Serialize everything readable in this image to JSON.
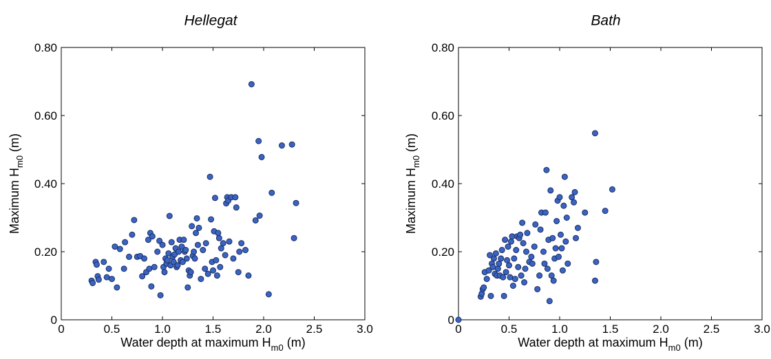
{
  "chart_data": [
    {
      "type": "scatter",
      "title": "Hellegat",
      "xlabel": {
        "main": "Water depth at maximum H",
        "sub": "m0",
        "unit": " (m)"
      },
      "ylabel": {
        "main": "Maximum H",
        "sub": "m0",
        "unit": " (m)"
      },
      "xlim": [
        0,
        3.0
      ],
      "ylim": [
        0,
        0.8
      ],
      "x_ticks": [
        "0",
        "0.5",
        "1.0",
        "1.5",
        "2.0",
        "2.5",
        "3.0"
      ],
      "y_ticks": [
        "0",
        "0.20",
        "0.40",
        "0.60",
        "0.80"
      ],
      "grid": false,
      "series": [
        {
          "color": "#3a64c4",
          "points": [
            [
              0.3,
              0.115
            ],
            [
              0.31,
              0.108
            ],
            [
              0.34,
              0.17
            ],
            [
              0.35,
              0.162
            ],
            [
              0.36,
              0.128
            ],
            [
              0.37,
              0.118
            ],
            [
              0.42,
              0.17
            ],
            [
              0.45,
              0.125
            ],
            [
              0.47,
              0.15
            ],
            [
              0.5,
              0.12
            ],
            [
              0.53,
              0.215
            ],
            [
              0.55,
              0.095
            ],
            [
              0.58,
              0.208
            ],
            [
              0.62,
              0.15
            ],
            [
              0.63,
              0.228
            ],
            [
              0.67,
              0.185
            ],
            [
              0.7,
              0.25
            ],
            [
              0.72,
              0.293
            ],
            [
              0.75,
              0.185
            ],
            [
              0.78,
              0.187
            ],
            [
              0.8,
              0.128
            ],
            [
              0.82,
              0.18
            ],
            [
              0.84,
              0.14
            ],
            [
              0.86,
              0.235
            ],
            [
              0.87,
              0.15
            ],
            [
              0.88,
              0.255
            ],
            [
              0.89,
              0.098
            ],
            [
              0.9,
              0.245
            ],
            [
              0.92,
              0.155
            ],
            [
              0.95,
              0.2
            ],
            [
              0.97,
              0.232
            ],
            [
              0.98,
              0.072
            ],
            [
              1.0,
              0.22
            ],
            [
              1.01,
              0.155
            ],
            [
              1.02,
              0.14
            ],
            [
              1.03,
              0.18
            ],
            [
              1.04,
              0.165
            ],
            [
              1.05,
              0.175
            ],
            [
              1.06,
              0.195
            ],
            [
              1.07,
              0.305
            ],
            [
              1.08,
              0.16
            ],
            [
              1.09,
              0.228
            ],
            [
              1.1,
              0.185
            ],
            [
              1.11,
              0.17
            ],
            [
              1.12,
              0.192
            ],
            [
              1.13,
              0.21
            ],
            [
              1.14,
              0.155
            ],
            [
              1.15,
              0.16
            ],
            [
              1.16,
              0.2
            ],
            [
              1.17,
              0.235
            ],
            [
              1.18,
              0.175
            ],
            [
              1.19,
              0.215
            ],
            [
              1.2,
              0.17
            ],
            [
              1.21,
              0.235
            ],
            [
              1.22,
              0.2
            ],
            [
              1.23,
              0.205
            ],
            [
              1.24,
              0.18
            ],
            [
              1.25,
              0.095
            ],
            [
              1.26,
              0.145
            ],
            [
              1.27,
              0.13
            ],
            [
              1.28,
              0.14
            ],
            [
              1.29,
              0.275
            ],
            [
              1.3,
              0.188
            ],
            [
              1.31,
              0.2
            ],
            [
              1.32,
              0.18
            ],
            [
              1.33,
              0.255
            ],
            [
              1.34,
              0.298
            ],
            [
              1.35,
              0.22
            ],
            [
              1.36,
              0.27
            ],
            [
              1.38,
              0.12
            ],
            [
              1.4,
              0.205
            ],
            [
              1.42,
              0.15
            ],
            [
              1.43,
              0.225
            ],
            [
              1.45,
              0.135
            ],
            [
              1.47,
              0.42
            ],
            [
              1.48,
              0.295
            ],
            [
              1.49,
              0.17
            ],
            [
              1.5,
              0.145
            ],
            [
              1.51,
              0.26
            ],
            [
              1.52,
              0.358
            ],
            [
              1.53,
              0.175
            ],
            [
              1.54,
              0.13
            ],
            [
              1.55,
              0.255
            ],
            [
              1.56,
              0.24
            ],
            [
              1.57,
              0.155
            ],
            [
              1.58,
              0.21
            ],
            [
              1.6,
              0.225
            ],
            [
              1.62,
              0.19
            ],
            [
              1.63,
              0.342
            ],
            [
              1.64,
              0.36
            ],
            [
              1.65,
              0.35
            ],
            [
              1.66,
              0.23
            ],
            [
              1.68,
              0.36
            ],
            [
              1.7,
              0.18
            ],
            [
              1.72,
              0.36
            ],
            [
              1.73,
              0.33
            ],
            [
              1.75,
              0.14
            ],
            [
              1.76,
              0.2
            ],
            [
              1.78,
              0.225
            ],
            [
              1.82,
              0.205
            ],
            [
              1.85,
              0.13
            ],
            [
              1.88,
              0.692
            ],
            [
              1.92,
              0.292
            ],
            [
              1.95,
              0.525
            ],
            [
              1.96,
              0.306
            ],
            [
              1.98,
              0.478
            ],
            [
              2.05,
              0.075
            ],
            [
              2.08,
              0.373
            ],
            [
              2.18,
              0.512
            ],
            [
              2.28,
              0.515
            ],
            [
              2.3,
              0.24
            ],
            [
              2.32,
              0.343
            ]
          ]
        }
      ]
    },
    {
      "type": "scatter",
      "title": "Bath",
      "xlabel": {
        "main": "Water depth at maximum H",
        "sub": "m0",
        "unit": " (m)"
      },
      "ylabel": {
        "main": "Maximum H",
        "sub": "m0",
        "unit": " (m)"
      },
      "xlim": [
        0,
        3.0
      ],
      "ylim": [
        0,
        0.8
      ],
      "x_ticks": [
        "0",
        "0.5",
        "1.0",
        "1.5",
        "2.0",
        "2.5",
        "3.0"
      ],
      "y_ticks": [
        "0",
        "0.20",
        "0.40",
        "0.60",
        "0.80"
      ],
      "grid": false,
      "series": [
        {
          "color": "#3a64c4",
          "points": [
            [
              0.0,
              0.0
            ],
            [
              0.22,
              0.068
            ],
            [
              0.23,
              0.077
            ],
            [
              0.24,
              0.09
            ],
            [
              0.25,
              0.095
            ],
            [
              0.26,
              0.14
            ],
            [
              0.28,
              0.12
            ],
            [
              0.3,
              0.145
            ],
            [
              0.31,
              0.19
            ],
            [
              0.32,
              0.07
            ],
            [
              0.33,
              0.165
            ],
            [
              0.34,
              0.155
            ],
            [
              0.35,
              0.18
            ],
            [
              0.36,
              0.135
            ],
            [
              0.37,
              0.195
            ],
            [
              0.38,
              0.13
            ],
            [
              0.39,
              0.15
            ],
            [
              0.4,
              0.165
            ],
            [
              0.41,
              0.13
            ],
            [
              0.42,
              0.18
            ],
            [
              0.43,
              0.205
            ],
            [
              0.44,
              0.125
            ],
            [
              0.45,
              0.07
            ],
            [
              0.46,
              0.235
            ],
            [
              0.47,
              0.14
            ],
            [
              0.48,
              0.175
            ],
            [
              0.49,
              0.215
            ],
            [
              0.5,
              0.16
            ],
            [
              0.51,
              0.125
            ],
            [
              0.52,
              0.23
            ],
            [
              0.53,
              0.245
            ],
            [
              0.54,
              0.1
            ],
            [
              0.55,
              0.18
            ],
            [
              0.56,
              0.12
            ],
            [
              0.57,
              0.205
            ],
            [
              0.58,
              0.245
            ],
            [
              0.59,
              0.155
            ],
            [
              0.6,
              0.24
            ],
            [
              0.61,
              0.25
            ],
            [
              0.62,
              0.13
            ],
            [
              0.63,
              0.285
            ],
            [
              0.64,
              0.225
            ],
            [
              0.65,
              0.11
            ],
            [
              0.66,
              0.15
            ],
            [
              0.67,
              0.2
            ],
            [
              0.68,
              0.255
            ],
            [
              0.7,
              0.17
            ],
            [
              0.72,
              0.185
            ],
            [
              0.73,
              0.165
            ],
            [
              0.75,
              0.215
            ],
            [
              0.76,
              0.28
            ],
            [
              0.78,
              0.09
            ],
            [
              0.8,
              0.13
            ],
            [
              0.81,
              0.265
            ],
            [
              0.82,
              0.315
            ],
            [
              0.84,
              0.2
            ],
            [
              0.85,
              0.165
            ],
            [
              0.86,
              0.315
            ],
            [
              0.87,
              0.44
            ],
            [
              0.88,
              0.15
            ],
            [
              0.89,
              0.235
            ],
            [
              0.9,
              0.055
            ],
            [
              0.91,
              0.38
            ],
            [
              0.92,
              0.13
            ],
            [
              0.93,
              0.24
            ],
            [
              0.94,
              0.115
            ],
            [
              0.95,
              0.18
            ],
            [
              0.96,
              0.21
            ],
            [
              0.97,
              0.29
            ],
            [
              0.98,
              0.35
            ],
            [
              0.99,
              0.185
            ],
            [
              1.0,
              0.36
            ],
            [
              1.01,
              0.25
            ],
            [
              1.02,
              0.21
            ],
            [
              1.03,
              0.145
            ],
            [
              1.04,
              0.335
            ],
            [
              1.05,
              0.42
            ],
            [
              1.06,
              0.23
            ],
            [
              1.07,
              0.3
            ],
            [
              1.08,
              0.165
            ],
            [
              1.12,
              0.36
            ],
            [
              1.14,
              0.345
            ],
            [
              1.15,
              0.375
            ],
            [
              1.16,
              0.24
            ],
            [
              1.18,
              0.27
            ],
            [
              1.25,
              0.315
            ],
            [
              1.35,
              0.548
            ],
            [
              1.35,
              0.115
            ],
            [
              1.36,
              0.17
            ],
            [
              1.45,
              0.32
            ],
            [
              1.52,
              0.383
            ]
          ]
        }
      ]
    }
  ]
}
